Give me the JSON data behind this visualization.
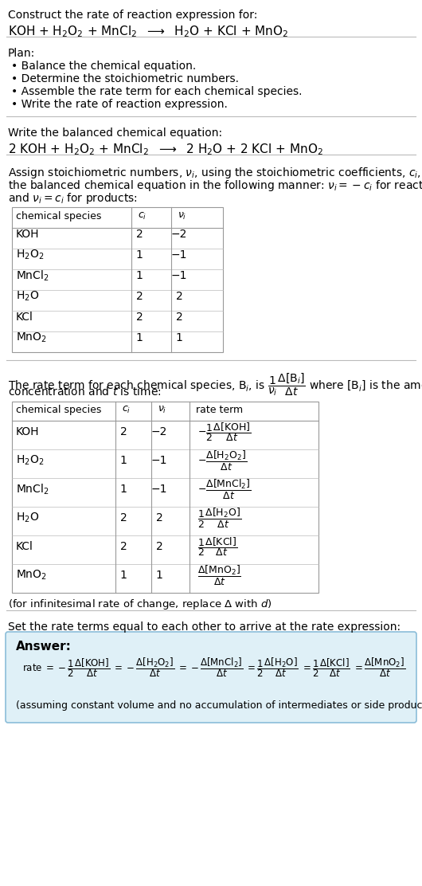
{
  "bg_color": "#ffffff",
  "text_color": "#000000",
  "title_line1": "Construct the rate of reaction expression for:",
  "plan_header": "Plan:",
  "plan_items": [
    "• Balance the chemical equation.",
    "• Determine the stoichiometric numbers.",
    "• Assemble the rate term for each chemical species.",
    "• Write the rate of reaction expression."
  ],
  "balanced_header": "Write the balanced chemical equation:",
  "table1_headers": [
    "chemical species",
    "ci",
    "vi"
  ],
  "table1_data": [
    [
      "KOH",
      "2",
      "−2"
    ],
    [
      "H2O2",
      "1",
      "−1"
    ],
    [
      "MnCl2",
      "1",
      "−1"
    ],
    [
      "H2O",
      "2",
      "2"
    ],
    [
      "KCl",
      "2",
      "2"
    ],
    [
      "MnO2",
      "1",
      "1"
    ]
  ],
  "table2_headers": [
    "chemical species",
    "ci",
    "vi",
    "rate term"
  ],
  "table2_data": [
    [
      "KOH",
      "2",
      "−2",
      "rt_koh"
    ],
    [
      "H2O2",
      "1",
      "−1",
      "rt_h2o2"
    ],
    [
      "MnCl2",
      "1",
      "−1",
      "rt_mncl2"
    ],
    [
      "H2O",
      "2",
      "2",
      "rt_h2o"
    ],
    [
      "KCl",
      "2",
      "2",
      "rt_kcl"
    ],
    [
      "MnO2",
      "1",
      "1",
      "rt_mno2"
    ]
  ],
  "infinitesimal_note": "(for infinitesimal rate of change, replace Δ with d)",
  "set_equal_header": "Set the rate terms equal to each other to arrive at the rate expression:",
  "answer_label": "Answer:",
  "answer_box_color": "#dff0f7",
  "answer_box_border": "#8bbdd9",
  "assuming_note": "(assuming constant volume and no accumulation of intermediates or side products)"
}
